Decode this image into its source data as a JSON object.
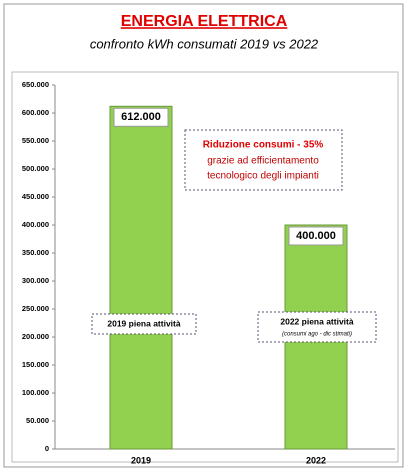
{
  "chart_data": {
    "type": "bar",
    "title": "ENERGIA ELETTRICA",
    "subtitle": "confronto kWh consumati 2019 vs 2022",
    "categories": [
      "2019",
      "2022"
    ],
    "values": [
      612000,
      400000
    ],
    "value_labels": [
      "612.000",
      "400.000"
    ],
    "color": "#92d050",
    "ylim": [
      0,
      650000
    ],
    "yticks": [
      0,
      {
        "value": 50000,
        "label": "50.000"
      },
      {
        "value": 100000,
        "label": "100.000"
      },
      {
        "value": 150000,
        "label": "150.000"
      },
      {
        "value": 200000,
        "label": "200.000"
      },
      {
        "value": 250000,
        "label": "250.000"
      },
      {
        "value": 300000,
        "label": "300.000"
      },
      {
        "value": 350000,
        "label": "350.000"
      },
      {
        "value": 400000,
        "label": "400.000"
      },
      {
        "value": 450000,
        "label": "450.000"
      },
      {
        "value": 500000,
        "label": "500.000"
      },
      {
        "value": 550000,
        "label": "550.000"
      },
      {
        "value": 600000,
        "label": "600.000"
      },
      {
        "value": 650000,
        "label": "650.000"
      }
    ],
    "grid": false,
    "annotation": {
      "headline": "Riduzione consumi - 35%",
      "lines": [
        "grazie ad efficientamento",
        "tecnologico degli impianti"
      ]
    },
    "bar_notes": [
      {
        "text": "2019 piena attività"
      },
      {
        "text": "2022 piena attività",
        "note": "(consumi ago - dic stimati)"
      }
    ]
  }
}
